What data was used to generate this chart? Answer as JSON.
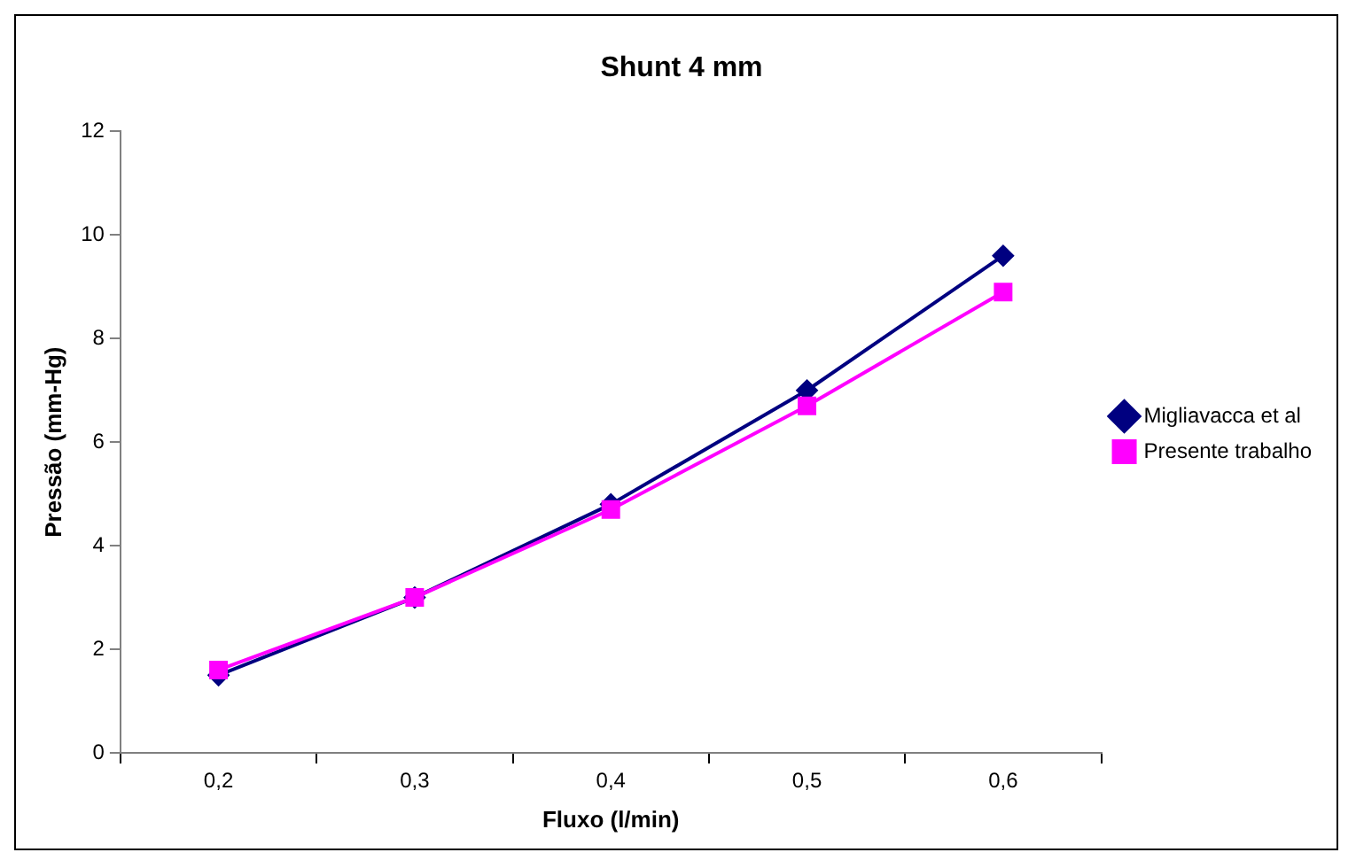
{
  "chart_data": {
    "type": "line",
    "title": "Shunt 4 mm",
    "xlabel": "Fluxo (l/min)",
    "ylabel": "Pressão (mm-Hg)",
    "categories": [
      "0,2",
      "0,3",
      "0,4",
      "0,5",
      "0,6"
    ],
    "series": [
      {
        "name": "Migliavacca et al",
        "color": "#000080",
        "marker": "diamond",
        "values": [
          1.5,
          3.0,
          4.8,
          7.0,
          9.6
        ]
      },
      {
        "name": "Presente trabalho",
        "color": "#ff00ff",
        "marker": "square",
        "values": [
          1.6,
          3.0,
          4.7,
          6.7,
          8.9
        ]
      }
    ],
    "ylim": [
      0,
      12
    ],
    "yticks": [
      0,
      2,
      4,
      6,
      8,
      10,
      12
    ],
    "grid": false,
    "legend": "right",
    "line_style": "solid"
  }
}
